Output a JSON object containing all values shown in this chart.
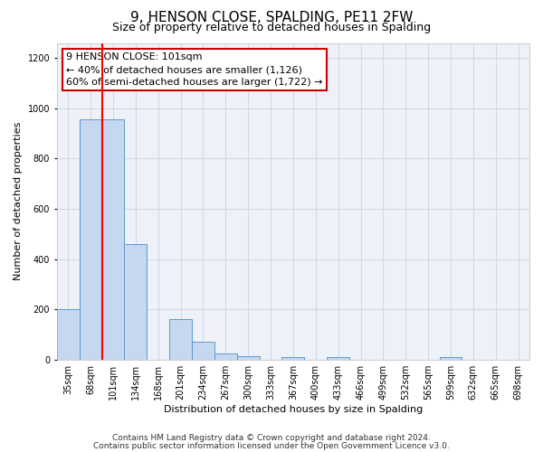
{
  "title": "9, HENSON CLOSE, SPALDING, PE11 2FW",
  "subtitle": "Size of property relative to detached houses in Spalding",
  "xlabel": "Distribution of detached houses by size in Spalding",
  "ylabel": "Number of detached properties",
  "footnote1": "Contains HM Land Registry data © Crown copyright and database right 2024.",
  "footnote2": "Contains public sector information licensed under the Open Government Licence v3.0.",
  "bin_labels": [
    "35sqm",
    "68sqm",
    "101sqm",
    "134sqm",
    "168sqm",
    "201sqm",
    "234sqm",
    "267sqm",
    "300sqm",
    "333sqm",
    "367sqm",
    "400sqm",
    "433sqm",
    "466sqm",
    "499sqm",
    "532sqm",
    "565sqm",
    "599sqm",
    "632sqm",
    "665sqm",
    "698sqm"
  ],
  "bar_values": [
    200,
    955,
    955,
    460,
    0,
    160,
    70,
    25,
    15,
    0,
    10,
    0,
    10,
    0,
    0,
    0,
    0,
    10,
    0,
    0,
    0
  ],
  "bar_color": "#c5d8f0",
  "bar_edge_color": "#5b9bd5",
  "red_line_x": 2,
  "annotation_line1": "9 HENSON CLOSE: 101sqm",
  "annotation_line2": "← 40% of detached houses are smaller (1,126)",
  "annotation_line3": "60% of semi-detached houses are larger (1,722) →",
  "annotation_box_edge": "#cc0000",
  "ylim": [
    0,
    1260
  ],
  "yticks": [
    0,
    200,
    400,
    600,
    800,
    1000,
    1200
  ],
  "grid_color": "#d0d8e8",
  "bg_color": "#eef2f8",
  "title_fontsize": 11,
  "subtitle_fontsize": 9,
  "axis_label_fontsize": 8,
  "tick_fontsize": 7,
  "annot_fontsize": 8,
  "footnote_fontsize": 6.5
}
